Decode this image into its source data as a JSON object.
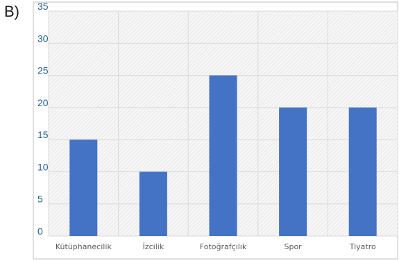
{
  "option_label": "B)",
  "chart_data": {
    "type": "bar",
    "categories": [
      "Kütüphanecilik",
      "İzcilik",
      "Fotoğrafçılık",
      "Spor",
      "Tiyatro"
    ],
    "values": [
      15,
      10,
      25,
      20,
      20
    ],
    "ylim": [
      0,
      35
    ],
    "yticks": [
      0,
      5,
      10,
      15,
      20,
      25,
      30,
      35
    ],
    "grid": true,
    "bar_color": "#4472c4",
    "ytick_color": "#1f5f8b",
    "xtick_color": "#595959",
    "grid_color": "#d9d9d9",
    "plot_background": "hatched-gray"
  }
}
